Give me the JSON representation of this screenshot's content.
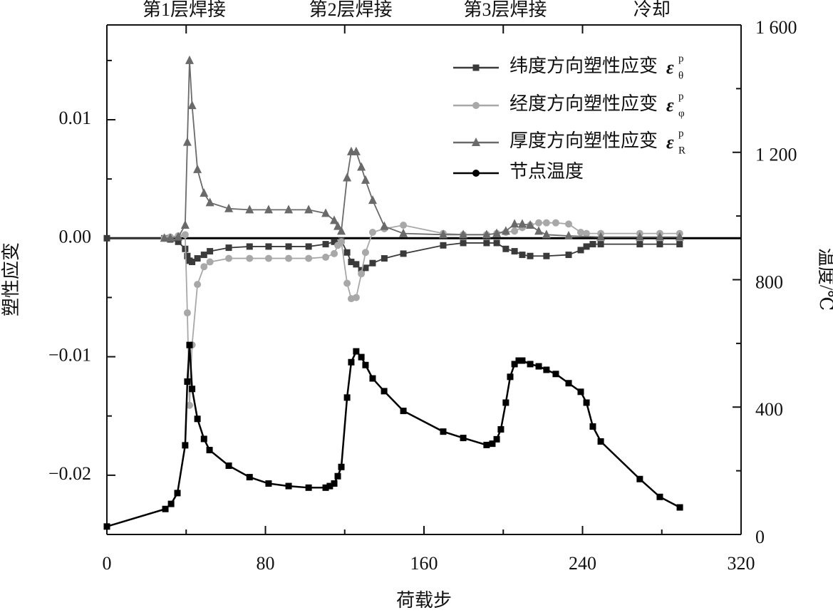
{
  "chart_data": {
    "type": "line",
    "x_label": "荷载步",
    "y_label": "塑性应变",
    "y2_label": "温度/℃",
    "xlim": [
      0,
      320
    ],
    "xticks": [
      0,
      80,
      160,
      240,
      320
    ],
    "xminorticks": [
      40,
      120,
      200,
      280
    ],
    "ylim": [
      -0.025,
      0.018
    ],
    "yticks": [
      {
        "value": -0.02,
        "label": "−0.02"
      },
      {
        "value": -0.01,
        "label": "−0.01"
      },
      {
        "value": 0,
        "label": "0.00"
      },
      0.01
    ],
    "yminorticks": [
      -0.015,
      -0.005,
      0.005,
      0.015
    ],
    "y2lim": [
      0,
      1600
    ],
    "y2ticks": [
      0,
      400,
      800,
      {
        "value": 1200,
        "label": "1 200"
      },
      {
        "value": 1600,
        "label": "1 600"
      }
    ],
    "y2minorticks": [
      200,
      600,
      1000,
      1400
    ],
    "phase_bounds": [
      40,
      120,
      200,
      240
    ],
    "annotations": [
      {
        "text": "第1层焊接",
        "x": 39
      },
      {
        "text": "第2层焊接",
        "x": 123
      },
      {
        "text": "第3层焊接",
        "x": 201
      },
      {
        "text": "冷却",
        "x": 275
      }
    ],
    "series": [
      {
        "name": "纬度方向塑性应变",
        "symbol": {
          "base": "ε",
          "sup": "p",
          "sub": "θ"
        },
        "color": "#3a3a3a",
        "marker": "square",
        "x": [
          0,
          29,
          32,
          36,
          39.5,
          40.6,
          41.7,
          43,
          45.7,
          49,
          52,
          61.5,
          72,
          81.6,
          91.7,
          101.8,
          110.4,
          114.7,
          118.3,
          121.2,
          123.3,
          125.8,
          128.4,
          130.5,
          134.1,
          140,
          149.6,
          169.7,
          179.8,
          191.6,
          196.7,
          201.3,
          205.7,
          209.6,
          213.6,
          221.8,
          233,
          239.1,
          242,
          245.2,
          249.2,
          268.9,
          279,
          289
        ],
        "values": [
          0,
          0,
          -0.0001,
          -0.0003,
          -0.0009,
          -0.0015,
          -0.0019,
          -0.002,
          -0.0017,
          -0.0014,
          -0.0011,
          -0.0008,
          -0.0007,
          -0.0007,
          -0.0007,
          -0.0007,
          -0.0005,
          -0.0003,
          -0.0002,
          -0.0012,
          -0.002,
          -0.0022,
          -0.0027,
          -0.0025,
          -0.0021,
          -0.0017,
          -0.0013,
          -0.0006,
          -0.0004,
          -0.0004,
          -0.0004,
          -0.0009,
          -0.0011,
          -0.0014,
          -0.0015,
          -0.0015,
          -0.0014,
          -0.001,
          -0.0007,
          -0.0005,
          -0.0005,
          -0.0005,
          -0.0005,
          -0.0005
        ]
      },
      {
        "name": "经度方向塑性应变",
        "symbol": {
          "base": "ε",
          "sup": "p",
          "sub": "φ"
        },
        "color": "#a8a8a8",
        "marker": "circle",
        "x": [
          29,
          32,
          36,
          39.5,
          40.6,
          41.7,
          43,
          45.7,
          49,
          52,
          61.5,
          72,
          81.6,
          91.7,
          101.8,
          110.4,
          114.7,
          116.5,
          118.3,
          121.2,
          123.3,
          125.8,
          128.4,
          130.5,
          134.1,
          140,
          149.6,
          169.7,
          179.8,
          191.6,
          196.7,
          201.3,
          205.7,
          209.6,
          213.6,
          217.9,
          221.8,
          226.5,
          233,
          239.1,
          242,
          249.2,
          268.9,
          279,
          289
        ],
        "values": [
          0,
          0.0001,
          0.0002,
          0.0003,
          -0.0063,
          -0.0141,
          -0.009,
          -0.0039,
          -0.0024,
          -0.002,
          -0.0017,
          -0.0017,
          -0.0017,
          -0.0017,
          -0.0017,
          -0.0016,
          -0.0013,
          -0.0006,
          -0.0003,
          -0.0038,
          -0.0051,
          -0.005,
          -0.003,
          -0.0012,
          0.0005,
          0.0008,
          0.0011,
          0.0004,
          0.0003,
          0.0003,
          0.0004,
          0.0005,
          0.0006,
          0.0009,
          0.0011,
          0.0013,
          0.0013,
          0.0013,
          0.0012,
          0.0005,
          0.0004,
          0.0004,
          0.0004,
          0.0004,
          0.0004
        ]
      },
      {
        "name": "厚度方向塑性应变",
        "symbol": {
          "base": "ε",
          "sup": "p",
          "sub": "R"
        },
        "color": "#6a6a6a",
        "marker": "triangle",
        "x": [
          29,
          32,
          36,
          39.5,
          40.6,
          41.7,
          43,
          45.7,
          49,
          52,
          61.5,
          72,
          81.6,
          91.7,
          101.8,
          110.4,
          114.7,
          116.5,
          118.3,
          121.2,
          123.3,
          125.8,
          128.4,
          130.5,
          134.1,
          140,
          149.6,
          169.7,
          179.8,
          191.6,
          196.7,
          201.3,
          205.7,
          209.6,
          213.6,
          217.9,
          221.8,
          233,
          249.2,
          268.9,
          279,
          289
        ],
        "values": [
          0,
          0,
          0.0001,
          0.0011,
          0.0081,
          0.015,
          0.0112,
          0.0058,
          0.0038,
          0.003,
          0.0025,
          0.0024,
          0.0024,
          0.0024,
          0.0024,
          0.0021,
          0.0015,
          0.001,
          0.0006,
          0.0051,
          0.0073,
          0.0073,
          0.006,
          0.0049,
          0.0032,
          0.001,
          0.0004,
          0.0003,
          0.0003,
          0.0003,
          0.0004,
          0.0006,
          0.0012,
          0.0012,
          0.0011,
          0.0006,
          0.0003,
          0.0002,
          0.0001,
          0.0001,
          0.0001,
          0.0001
        ]
      },
      {
        "name": "节点温度",
        "color": "#000000",
        "marker": "square",
        "axis": "y2",
        "x": [
          0,
          29.5,
          32.4,
          35.6,
          39.5,
          40.6,
          41.7,
          43,
          45.7,
          49,
          51.8,
          61.5,
          72,
          81.6,
          91.7,
          101.8,
          110.4,
          112.5,
          114.7,
          116.5,
          118.3,
          121.2,
          123.3,
          125.8,
          128.4,
          130.5,
          134.1,
          139.9,
          149.6,
          169.7,
          179.8,
          191.6,
          194.5,
          196.7,
          198.8,
          201.3,
          203.5,
          205.7,
          207.8,
          209.6,
          213.6,
          217.9,
          221.8,
          226.5,
          233,
          239.1,
          242,
          245.2,
          249.2,
          268.9,
          279,
          289.1
        ],
        "values": [
          25,
          80,
          96,
          130,
          280,
          480,
          595,
          457,
          363,
          300,
          265,
          216,
          180,
          160,
          152,
          147,
          147,
          152,
          160,
          183,
          212,
          430,
          541,
          575,
          557,
          532,
          490,
          450,
          388,
          323,
          303,
          281,
          285,
          299,
          330,
          414,
          495,
          535,
          546,
          546,
          535,
          528,
          517,
          504,
          475,
          448,
          414,
          339,
          292,
          174,
          118,
          85
        ]
      }
    ]
  }
}
